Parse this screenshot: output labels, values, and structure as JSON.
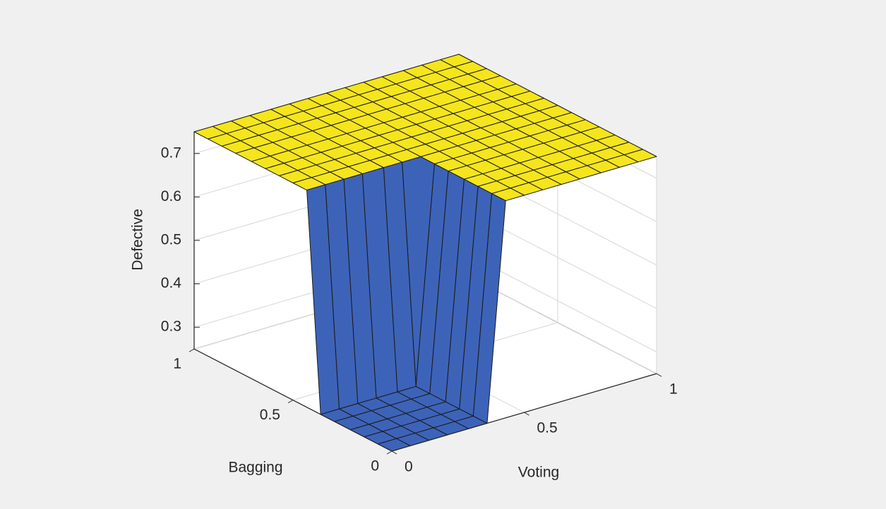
{
  "chart_data": {
    "type": "surface",
    "xlabel": "Voting",
    "ylabel": "Bagging",
    "zlabel": "Defective",
    "x": [
      0,
      0.07,
      0.14,
      0.21,
      0.29,
      0.36,
      0.43,
      0.5,
      0.57,
      0.64,
      0.71,
      0.79,
      0.86,
      0.93,
      1
    ],
    "y": [
      0,
      0.07,
      0.14,
      0.21,
      0.29,
      0.36,
      0.43,
      0.5,
      0.57,
      0.64,
      0.71,
      0.79,
      0.86,
      0.93,
      1
    ],
    "z": [
      [
        0.25,
        0.25,
        0.25,
        0.25,
        0.25,
        0.25,
        0.75,
        0.75,
        0.75,
        0.75,
        0.75,
        0.75,
        0.75,
        0.75,
        0.75
      ],
      [
        0.25,
        0.25,
        0.25,
        0.25,
        0.25,
        0.25,
        0.75,
        0.75,
        0.75,
        0.75,
        0.75,
        0.75,
        0.75,
        0.75,
        0.75
      ],
      [
        0.25,
        0.25,
        0.25,
        0.25,
        0.25,
        0.25,
        0.75,
        0.75,
        0.75,
        0.75,
        0.75,
        0.75,
        0.75,
        0.75,
        0.75
      ],
      [
        0.25,
        0.25,
        0.25,
        0.25,
        0.25,
        0.25,
        0.75,
        0.75,
        0.75,
        0.75,
        0.75,
        0.75,
        0.75,
        0.75,
        0.75
      ],
      [
        0.25,
        0.25,
        0.25,
        0.25,
        0.25,
        0.25,
        0.75,
        0.75,
        0.75,
        0.75,
        0.75,
        0.75,
        0.75,
        0.75,
        0.75
      ],
      [
        0.25,
        0.25,
        0.25,
        0.25,
        0.25,
        0.25,
        0.75,
        0.75,
        0.75,
        0.75,
        0.75,
        0.75,
        0.75,
        0.75,
        0.75
      ],
      [
        0.75,
        0.75,
        0.75,
        0.75,
        0.75,
        0.75,
        0.75,
        0.75,
        0.75,
        0.75,
        0.75,
        0.75,
        0.75,
        0.75,
        0.75
      ],
      [
        0.75,
        0.75,
        0.75,
        0.75,
        0.75,
        0.75,
        0.75,
        0.75,
        0.75,
        0.75,
        0.75,
        0.75,
        0.75,
        0.75,
        0.75
      ],
      [
        0.75,
        0.75,
        0.75,
        0.75,
        0.75,
        0.75,
        0.75,
        0.75,
        0.75,
        0.75,
        0.75,
        0.75,
        0.75,
        0.75,
        0.75
      ],
      [
        0.75,
        0.75,
        0.75,
        0.75,
        0.75,
        0.75,
        0.75,
        0.75,
        0.75,
        0.75,
        0.75,
        0.75,
        0.75,
        0.75,
        0.75
      ],
      [
        0.75,
        0.75,
        0.75,
        0.75,
        0.75,
        0.75,
        0.75,
        0.75,
        0.75,
        0.75,
        0.75,
        0.75,
        0.75,
        0.75,
        0.75
      ],
      [
        0.75,
        0.75,
        0.75,
        0.75,
        0.75,
        0.75,
        0.75,
        0.75,
        0.75,
        0.75,
        0.75,
        0.75,
        0.75,
        0.75,
        0.75
      ],
      [
        0.75,
        0.75,
        0.75,
        0.75,
        0.75,
        0.75,
        0.75,
        0.75,
        0.75,
        0.75,
        0.75,
        0.75,
        0.75,
        0.75,
        0.75
      ],
      [
        0.75,
        0.75,
        0.75,
        0.75,
        0.75,
        0.75,
        0.75,
        0.75,
        0.75,
        0.75,
        0.75,
        0.75,
        0.75,
        0.75,
        0.75
      ],
      [
        0.75,
        0.75,
        0.75,
        0.75,
        0.75,
        0.75,
        0.75,
        0.75,
        0.75,
        0.75,
        0.75,
        0.75,
        0.75,
        0.75,
        0.75
      ]
    ],
    "xlim": [
      0,
      1
    ],
    "ylim": [
      0,
      1
    ],
    "zlim": [
      0.25,
      0.75
    ],
    "xticks": [
      0,
      0.5,
      1
    ],
    "yticks": [
      0,
      0.5,
      1
    ],
    "zticks": [
      0.3,
      0.4,
      0.5,
      0.6,
      0.7
    ],
    "colors": {
      "low": "#3d63b8",
      "high": "#f5e51d"
    },
    "grid": true
  }
}
